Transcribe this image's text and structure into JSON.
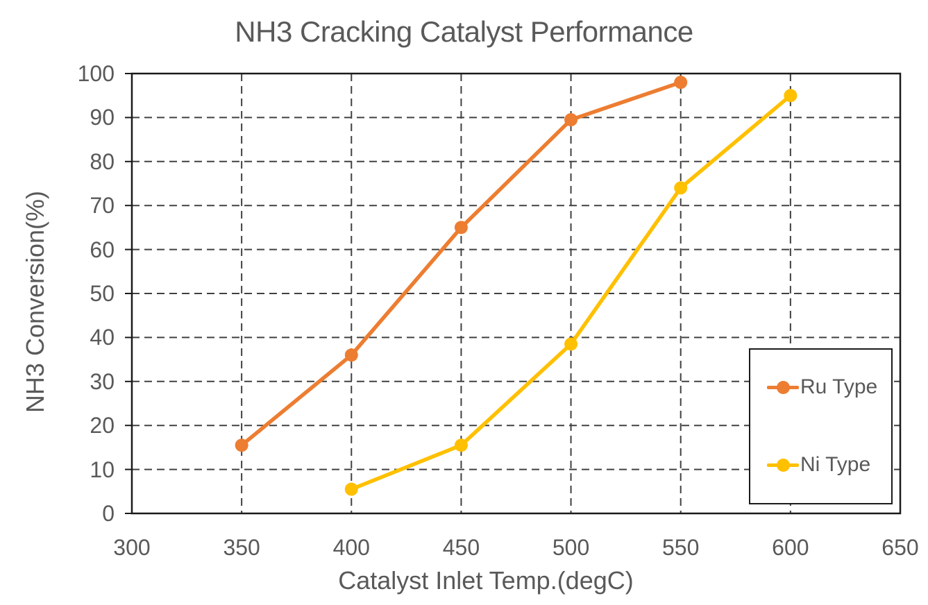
{
  "title": "NH3 Cracking Catalyst Performance",
  "colors": {
    "ru_orange": "#ED7D31",
    "ni_gold": "#FFC000",
    "text_gray": "#595959",
    "gridline": "#404040",
    "plot_border": "#1a1a1a",
    "background": "#FFFFFF"
  },
  "chart_data": {
    "type": "line",
    "title": "NH3 Cracking Catalyst Performance",
    "xlabel": "Catalyst Inlet Temp.(degC)",
    "ylabel": "NH3 Conversion(%)",
    "xlim": [
      300,
      650
    ],
    "ylim": [
      0,
      100
    ],
    "x_ticks": [
      "300",
      "350",
      "400",
      "450",
      "500",
      "550",
      "600",
      "650"
    ],
    "y_ticks": [
      "0",
      "10",
      "20",
      "30",
      "40",
      "50",
      "60",
      "70",
      "80",
      "90",
      "100"
    ],
    "grid": "dashed-both-axes",
    "legend_position": "inside-right",
    "series": [
      {
        "name": "Ru Type",
        "color": "#ED7D31",
        "marker": "circle",
        "x": [
          350,
          400,
          450,
          500,
          550
        ],
        "y": [
          15.5,
          36,
          65,
          89.5,
          98
        ]
      },
      {
        "name": "Ni Type",
        "color": "#FFC000",
        "marker": "circle",
        "x": [
          400,
          450,
          500,
          550,
          600
        ],
        "y": [
          5.5,
          15.5,
          38.5,
          74,
          95
        ]
      }
    ]
  }
}
